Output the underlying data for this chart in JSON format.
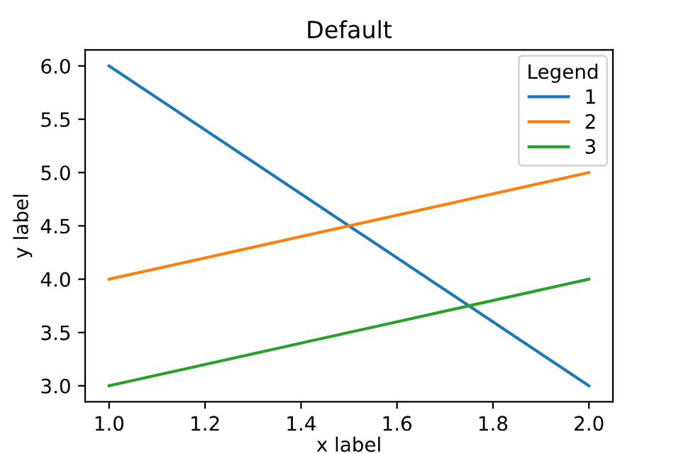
{
  "chart_data": {
    "type": "line",
    "title": "Default",
    "xlabel": "x label",
    "ylabel": "y label",
    "legend_title": "Legend",
    "x": [
      1.0,
      2.0
    ],
    "series": [
      {
        "name": "1",
        "color": "#1f77b4",
        "values": [
          6.0,
          3.0
        ]
      },
      {
        "name": "2",
        "color": "#ff7f0e",
        "values": [
          4.0,
          5.0
        ]
      },
      {
        "name": "3",
        "color": "#2ca02c",
        "values": [
          3.0,
          4.0
        ]
      }
    ],
    "xlim": [
      0.95,
      2.05
    ],
    "ylim": [
      2.85,
      6.15
    ],
    "xticks": [
      {
        "value": 1,
        "label": "1.0"
      },
      1.2,
      1.4,
      1.6,
      1.8,
      {
        "value": 2,
        "label": "2.0"
      }
    ],
    "yticks": [
      {
        "value": 3,
        "label": "3.0"
      },
      3.5,
      {
        "value": 4,
        "label": "4.0"
      },
      4.5,
      {
        "value": 5,
        "label": "5.0"
      },
      5.5,
      {
        "value": 6,
        "label": "6.0"
      }
    ],
    "grid": false,
    "legend": "top right",
    "line_style": "solid",
    "marker": "none"
  }
}
